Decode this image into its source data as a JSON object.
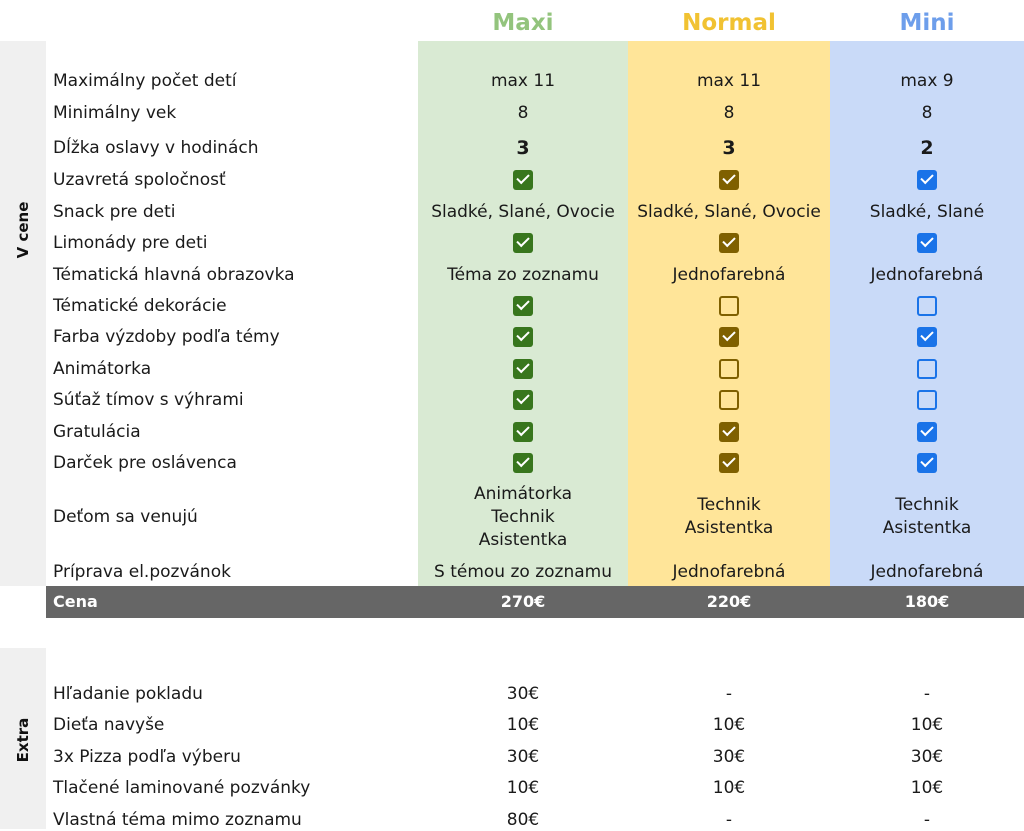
{
  "colors": {
    "maxi_header": "#93c47d",
    "normal_header": "#f1c232",
    "mini_header": "#6d9eeb",
    "maxi_bg": "#d9ead3",
    "normal_bg": "#ffe599",
    "mini_bg": "#c9daf8",
    "maxi_check": "#38761d",
    "normal_check": "#7f6000",
    "mini_check": "#1a73e8",
    "price_bar": "#666666"
  },
  "headers": {
    "maxi": "Maxi",
    "normal": "Normal",
    "mini": "Mini"
  },
  "sections": {
    "included": "V cene",
    "extra": "Extra"
  },
  "rows": [
    {
      "label": "Maximálny počet detí",
      "maxi": "max 11",
      "normal": "max 11",
      "mini": "max 9"
    },
    {
      "label": "Minimálny vek",
      "maxi": "8",
      "normal": "8",
      "mini": "8"
    },
    {
      "label": "Dĺžka oslavy v hodinách",
      "maxi": "3",
      "normal": "3",
      "mini": "2"
    },
    {
      "label": "Uzavretá spoločnosť",
      "maxi": true,
      "normal": true,
      "mini": true
    },
    {
      "label": "Snack pre deti",
      "maxi": "Sladké, Slané, Ovocie",
      "normal": "Sladké, Slané, Ovocie",
      "mini": "Sladké, Slané"
    },
    {
      "label": "Limonády pre deti",
      "maxi": true,
      "normal": true,
      "mini": true
    },
    {
      "label": "Tématická hlavná obrazovka",
      "maxi": "Téma zo zoznamu",
      "normal": "Jednofarebná",
      "mini": "Jednofarebná"
    },
    {
      "label": "Tématické dekorácie",
      "maxi": true,
      "normal": false,
      "mini": false
    },
    {
      "label": "Farba výzdoby podľa témy",
      "maxi": true,
      "normal": true,
      "mini": true
    },
    {
      "label": "Animátorka",
      "maxi": true,
      "normal": false,
      "mini": false
    },
    {
      "label": "Súťaž tímov s výhrami",
      "maxi": true,
      "normal": false,
      "mini": false
    },
    {
      "label": "Gratulácia",
      "maxi": true,
      "normal": true,
      "mini": true
    },
    {
      "label": "Darček pre oslávenca",
      "maxi": true,
      "normal": true,
      "mini": true
    },
    {
      "label": "Deťom sa venujú",
      "maxi": [
        "Animátorka",
        "Technik",
        "Asistentka"
      ],
      "normal": [
        "Technik",
        "Asistentka"
      ],
      "mini": [
        "Technik",
        "Asistentka"
      ]
    },
    {
      "label": "Príprava el.pozvánok",
      "maxi": "S témou zo zoznamu",
      "normal": "Jednofarebná",
      "mini": "Jednofarebná"
    }
  ],
  "price": {
    "label": "Cena",
    "maxi": "270€",
    "normal": "220€",
    "mini": "180€"
  },
  "extras": [
    {
      "label": "Hľadanie pokladu",
      "maxi": "30€",
      "normal": "-",
      "mini": "-"
    },
    {
      "label": "Dieťa navyše",
      "maxi": "10€",
      "normal": "10€",
      "mini": "10€"
    },
    {
      "label": "3x Pizza podľa výberu",
      "maxi": "30€",
      "normal": "30€",
      "mini": "30€"
    },
    {
      "label": "Tlačené laminované pozvánky",
      "maxi": "10€",
      "normal": "10€",
      "mini": "10€"
    },
    {
      "label": "Vlastná téma mimo zoznamu",
      "maxi": "80€",
      "normal": "-",
      "mini": "-"
    }
  ]
}
